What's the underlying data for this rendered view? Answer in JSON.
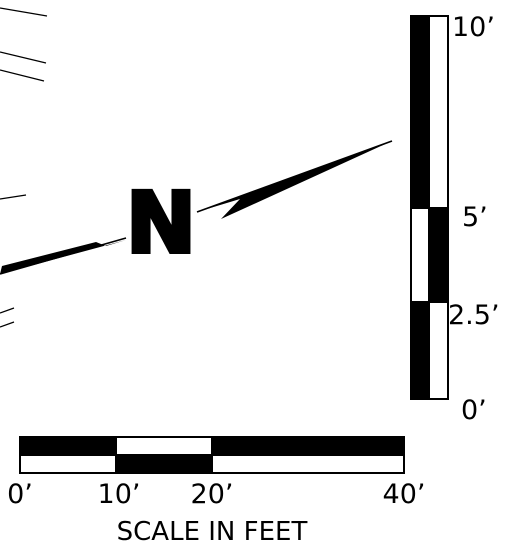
{
  "north_arrow": {
    "letter": "N"
  },
  "vertical_scale": {
    "labels": [
      "10’",
      "5’",
      "2.5’",
      "0’"
    ]
  },
  "horizontal_scale": {
    "labels": [
      "0’",
      "10’",
      "20’",
      "40’"
    ],
    "caption": "SCALE IN FEET"
  },
  "colors": {
    "ink": "#000000",
    "paper": "#ffffff"
  }
}
